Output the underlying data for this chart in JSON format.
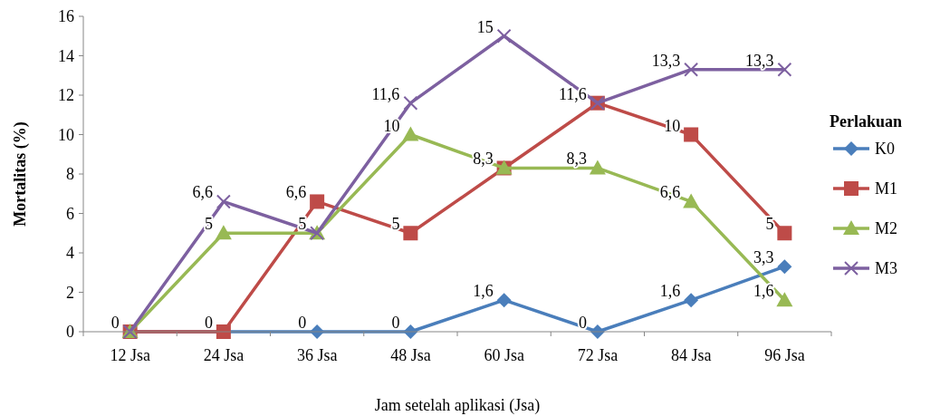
{
  "chart_data": {
    "type": "line",
    "xlabel": "Jam setelah aplikasi (Jsa)",
    "ylabel": "Mortalitas (%)",
    "legend_title": "Perlakuan",
    "legend": "right",
    "grid": false,
    "categories": [
      "12 Jsa",
      "24 Jsa",
      "36 Jsa",
      "48 Jsa",
      "60 Jsa",
      "72 Jsa",
      "84 Jsa",
      "96 Jsa"
    ],
    "ylim": [
      0,
      16
    ],
    "yticks": [
      0,
      2,
      4,
      6,
      8,
      10,
      12,
      14,
      16
    ],
    "series": [
      {
        "name": "K0",
        "color": "#4a7ebb",
        "marker": "diamond",
        "values": [
          0,
          0,
          0,
          0,
          1.6,
          0,
          1.6,
          3.3
        ],
        "value_labels": [
          "0",
          "0",
          "0",
          "0",
          "1,6",
          "0",
          "1,6",
          "3,3"
        ]
      },
      {
        "name": "M1",
        "color": "#be4b48",
        "marker": "square",
        "values": [
          0,
          0,
          6.6,
          5,
          8.3,
          11.6,
          10,
          5
        ],
        "value_labels": [
          null,
          null,
          "6,6",
          "5",
          "8,3",
          "11,6",
          "10",
          "5"
        ]
      },
      {
        "name": "M2",
        "color": "#98b954",
        "marker": "triangle",
        "values": [
          0,
          5,
          5,
          10,
          8.3,
          8.3,
          6.6,
          1.6
        ],
        "value_labels": [
          null,
          "5",
          "5",
          "10",
          null,
          "8,3",
          "6,6",
          "1,6"
        ]
      },
      {
        "name": "M3",
        "color": "#7d60a0",
        "marker": "cross",
        "values": [
          0,
          6.6,
          5,
          11.6,
          15,
          11.6,
          13.3,
          13.3
        ],
        "value_labels": [
          null,
          "6,6",
          null,
          "11,6",
          "15",
          null,
          "13,3",
          "13,3"
        ]
      }
    ]
  }
}
